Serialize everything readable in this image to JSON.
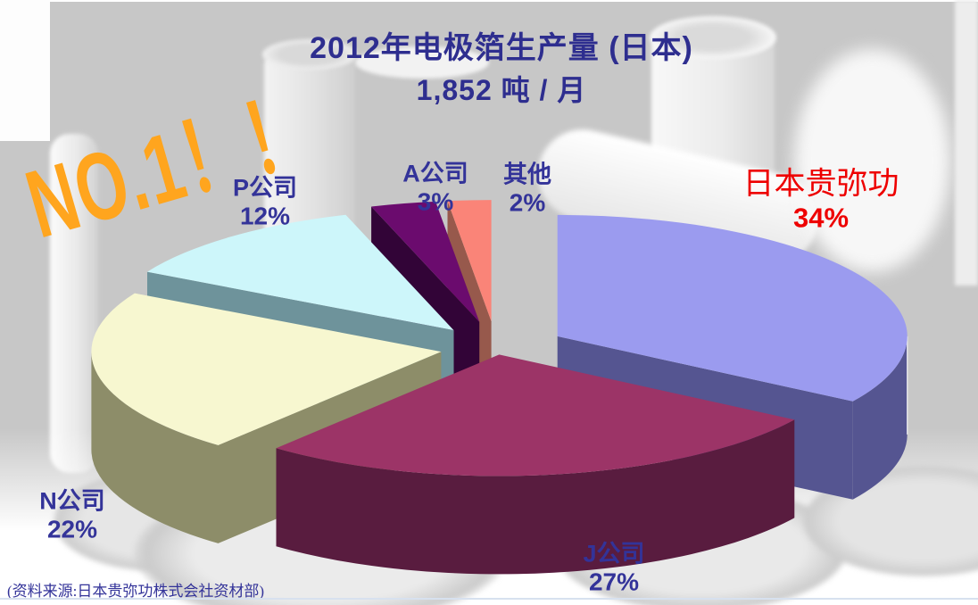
{
  "slide": {
    "title_line1": "2012年电极箔生产量 (日本)",
    "title_line2": "1,852 吨 / 月",
    "badge": "NO.1！！",
    "source_note": "(资料来源:日本贵弥功株式会社资材部)"
  },
  "colors": {
    "title_navy": "#2E2E8F",
    "label_navy": "#333399",
    "highlight_red": "#EE0000",
    "badge_orange": "#FFA51E",
    "bottom_rule": "#D7E1EF",
    "background_gray": "#C7C7C7"
  },
  "chart_data": {
    "type": "pie",
    "style": "3d-exploded",
    "title": "2012年电极箔生产量 (日本)",
    "subtitle": "1,852 吨 / 月",
    "total_per_month": "1,852 吨/月",
    "legend_position": "none",
    "labels_show_percent": true,
    "slices": [
      {
        "label": "日本贵弥功",
        "value": 34,
        "pct": "34%",
        "top_color": "#9B9BEF",
        "side_color": "#555591",
        "label_color": "#EE0000"
      },
      {
        "label": "J公司",
        "value": 27,
        "pct": "27%",
        "top_color": "#9C3467",
        "side_color": "#591C3F",
        "label_color": "#333399"
      },
      {
        "label": "N公司",
        "value": 22,
        "pct": "22%",
        "top_color": "#F7F7D0",
        "side_color": "#8D8D69",
        "label_color": "#333399"
      },
      {
        "label": "P公司",
        "value": 12,
        "pct": "12%",
        "top_color": "#CDF6FA",
        "side_color": "#6E939B",
        "label_color": "#333399"
      },
      {
        "label": "A公司",
        "value": 3,
        "pct": "3%",
        "top_color": "#6B0B6E",
        "side_color": "#320437",
        "label_color": "#333399"
      },
      {
        "label": "其他",
        "value": 2,
        "pct": "2%",
        "top_color": "#FA8478",
        "side_color": "#97594C",
        "label_color": "#333399"
      }
    ]
  }
}
